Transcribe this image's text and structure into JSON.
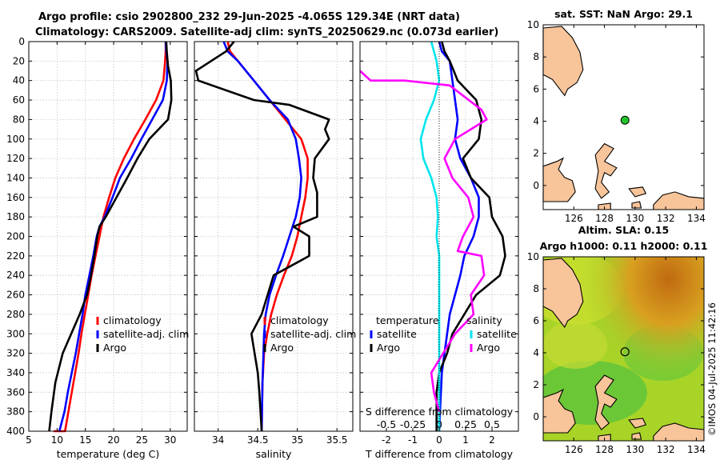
{
  "header": {
    "title_line1": "Argo profile: csio 2902800_232 29-Jun-2025 -4.065S 129.34E (NRT data)",
    "title_line2": "Climatology: CARS2009. Satellite-adj clim: synTS_20250629.nc (0.073d earlier)"
  },
  "stamp": "©IMOS 04-Jul-2025 11:42:16",
  "colors": {
    "climatology": "#ff0000",
    "satellite": "#0000ff",
    "argo": "#000000",
    "sal_diff": "#ff00ff",
    "sat_sal_diff": "#00e5ee",
    "land": "#f8c49a"
  },
  "chart_data": [
    {
      "id": "temperature",
      "type": "line",
      "xlabel": "temperature (deg C)",
      "ylabel": "",
      "xlim": [
        5,
        33
      ],
      "ylim": [
        400,
        0
      ],
      "x_ticks": [
        5,
        10,
        15,
        20,
        25,
        30
      ],
      "y_ticks": [
        0,
        20,
        40,
        60,
        80,
        100,
        120,
        140,
        160,
        180,
        200,
        220,
        240,
        260,
        280,
        300,
        320,
        340,
        360,
        380,
        400
      ],
      "legend": [
        "climatology",
        "satellite-adj. clim",
        "Argo"
      ],
      "series": [
        {
          "name": "climatology",
          "color": "#ff0000",
          "x": [
            29.2,
            29.2,
            29.1,
            28.8,
            27.5,
            25.6,
            23.6,
            21.8,
            20.3,
            19.2,
            18.2,
            17.5,
            16.8,
            16.1,
            15.5,
            14.9,
            14.3,
            13.8,
            13.2,
            12.6,
            12.0,
            11.4,
            10.8,
            10.3,
            9.8,
            9.4
          ],
          "y": [
            0,
            10,
            20,
            40,
            60,
            80,
            100,
            120,
            140,
            160,
            180,
            200,
            220,
            240,
            260,
            280,
            300,
            320,
            340,
            360,
            380,
            400,
            400,
            400,
            400,
            400
          ]
        },
        {
          "name": "satellite-adj. clim",
          "color": "#0000ff",
          "x": [
            29.2,
            29.3,
            29.5,
            29.4,
            28.7,
            26.8,
            24.9,
            23.1,
            21.1,
            19.8,
            18.4,
            17.5,
            17.0,
            16.4,
            15.7,
            15.0,
            14.5,
            13.9,
            13.3,
            12.6,
            11.9,
            11.3,
            10.4
          ],
          "y": [
            0,
            10,
            20,
            40,
            60,
            80,
            100,
            120,
            140,
            160,
            180,
            190,
            200,
            220,
            240,
            260,
            280,
            300,
            320,
            340,
            360,
            380,
            400
          ]
        },
        {
          "name": "Argo",
          "color": "#000000",
          "x": [
            29.3,
            29.4,
            29.6,
            30.1,
            30.2,
            29.6,
            26.3,
            24.2,
            22.4,
            20.5,
            18.6,
            17.5,
            17.1,
            16.6,
            16.0,
            15.3,
            14.0,
            12.5,
            11.0,
            9.7,
            9.0,
            8.6
          ],
          "y": [
            0,
            10,
            25,
            40,
            60,
            80,
            100,
            120,
            140,
            160,
            180,
            190,
            200,
            220,
            240,
            260,
            280,
            300,
            320,
            350,
            380,
            400
          ]
        }
      ]
    },
    {
      "id": "salinity",
      "type": "line",
      "xlabel": "salinity",
      "ylabel": "",
      "xlim": [
        33.7,
        35.7
      ],
      "ylim": [
        400,
        0
      ],
      "x_ticks": [
        34,
        34.5,
        35,
        35.5
      ],
      "legend": [
        "climatology",
        "satellite-adj. clim",
        "Argo"
      ],
      "series": [
        {
          "name": "climatology",
          "color": "#ff0000",
          "x": [
            34.12,
            34.15,
            34.25,
            34.45,
            34.65,
            34.85,
            35.05,
            35.13,
            35.13,
            35.1,
            35.05,
            35.0,
            34.93,
            34.83,
            34.74,
            34.67,
            34.62,
            34.58,
            34.56,
            34.55
          ],
          "y": [
            0,
            10,
            20,
            40,
            60,
            80,
            100,
            120,
            140,
            160,
            180,
            200,
            220,
            240,
            260,
            280,
            300,
            320,
            350,
            400
          ]
        },
        {
          "name": "satellite-adj. clim",
          "color": "#0000ff",
          "x": [
            34.07,
            34.12,
            34.25,
            34.45,
            34.65,
            34.88,
            34.98,
            35.02,
            35.05,
            35.03,
            34.98,
            34.9,
            34.82,
            34.73,
            34.65,
            34.6,
            34.58,
            34.56,
            34.55
          ],
          "y": [
            0,
            10,
            20,
            40,
            60,
            80,
            100,
            120,
            140,
            160,
            180,
            200,
            220,
            240,
            260,
            280,
            300,
            350,
            400
          ]
        },
        {
          "name": "Argo",
          "color": "#000000",
          "x": [
            34.2,
            34.1,
            33.72,
            33.75,
            34.45,
            34.9,
            35.4,
            35.35,
            35.4,
            35.22,
            35.2,
            35.25,
            35.25,
            34.95,
            35.15,
            35.15,
            34.7,
            34.55,
            34.42,
            34.5,
            34.52,
            34.55
          ],
          "y": [
            0,
            10,
            30,
            40,
            60,
            65,
            80,
            90,
            100,
            120,
            140,
            155,
            180,
            190,
            200,
            220,
            240,
            280,
            300,
            340,
            360,
            400
          ]
        }
      ]
    },
    {
      "id": "difference",
      "type": "line",
      "xlabel": "T difference from climatology",
      "top_label": "S difference from climatology",
      "xlim": [
        -3,
        3
      ],
      "ylim": [
        400,
        0
      ],
      "x_ticks": [
        -2,
        -1,
        0,
        1,
        2
      ],
      "s_ticks_labels": [
        "-0.5",
        "-0.25",
        "0",
        "0.25",
        "0.5"
      ],
      "legend_left_title": "temperature",
      "legend_right_title": "salinity",
      "legend_left": [
        "satellite",
        "Argo"
      ],
      "legend_right": [
        "satellite",
        "Argo"
      ],
      "series": [
        {
          "name": "temperature satellite",
          "color": "#0000ff",
          "x": [
            0.0,
            0.1,
            0.4,
            0.5,
            0.6,
            0.7,
            0.6,
            0.8,
            1.2,
            1.5,
            1.5,
            1.3,
            0.95,
            0.8,
            0.6,
            0.4,
            0.3,
            0.2,
            0.1,
            0.05,
            0.0
          ],
          "y": [
            0,
            10,
            20,
            40,
            60,
            80,
            100,
            120,
            140,
            160,
            180,
            200,
            220,
            240,
            260,
            280,
            300,
            320,
            340,
            370,
            400
          ]
        },
        {
          "name": "temperature Argo",
          "color": "#000000",
          "x": [
            0.1,
            0.2,
            0.4,
            0.7,
            1.4,
            1.6,
            1.5,
            0.9,
            1.2,
            1.9,
            2.0,
            2.4,
            2.5,
            2.3,
            1.4,
            0.5,
            0.3,
            0.0,
            -0.1,
            -0.1,
            -0.1
          ],
          "y": [
            0,
            10,
            20,
            40,
            60,
            80,
            100,
            120,
            140,
            160,
            180,
            200,
            220,
            240,
            260,
            300,
            320,
            340,
            360,
            380,
            400
          ]
        },
        {
          "name": "salinity satellite",
          "color": "#00e5ee",
          "x": [
            -0.3,
            -0.2,
            -0.1,
            0.0,
            -0.2,
            -0.5,
            -0.7,
            -0.6,
            -0.3,
            -0.1,
            -0.05,
            -0.1,
            0.0,
            0.0,
            0.0,
            0.0,
            0.0,
            0.0,
            0.0
          ],
          "y": [
            0,
            10,
            20,
            40,
            60,
            80,
            100,
            120,
            140,
            160,
            180,
            200,
            220,
            240,
            260,
            280,
            320,
            360,
            400
          ]
        },
        {
          "name": "salinity Argo",
          "color": "#ff00ff",
          "x": [
            -3.0,
            -2.6,
            -1.3,
            0.4,
            1.6,
            1.8,
            0.6,
            0.2,
            0.5,
            1.1,
            1.3,
            0.9,
            0.7,
            1.6,
            1.7,
            1.2,
            1.3,
            0.6,
            -0.3,
            -0.2,
            0.0
          ],
          "y": [
            30,
            40,
            40,
            45,
            70,
            80,
            100,
            120,
            140,
            160,
            180,
            200,
            215,
            220,
            240,
            260,
            280,
            300,
            340,
            360,
            380
          ]
        }
      ]
    },
    {
      "id": "sst_map",
      "type": "scatter",
      "title": "sat. SST: NaN Argo: 29.1",
      "xlim": [
        124,
        134.5
      ],
      "ylim": [
        -1.5,
        10
      ],
      "x_ticks": [
        126,
        128,
        130,
        132,
        134
      ],
      "y_ticks": [
        0,
        2,
        4,
        6,
        8,
        10
      ],
      "x": [
        129.34
      ],
      "y": [
        4.065
      ],
      "marker": "filled circle",
      "marker_color": "#22c22a"
    },
    {
      "id": "sla_map",
      "type": "heatmap",
      "title_line1": "Altim. SLA: 0.15",
      "title_line2": "Argo h1000: 0.11 h2000: 0.11",
      "xlim": [
        124,
        134.5
      ],
      "ylim": [
        -1.5,
        10
      ],
      "x_ticks": [
        126,
        128,
        130,
        132,
        134
      ],
      "y_ticks": [
        0,
        2,
        4,
        6,
        8,
        10
      ],
      "x": [
        129.34
      ],
      "y": [
        4.065
      ],
      "marker": "open circle"
    }
  ]
}
